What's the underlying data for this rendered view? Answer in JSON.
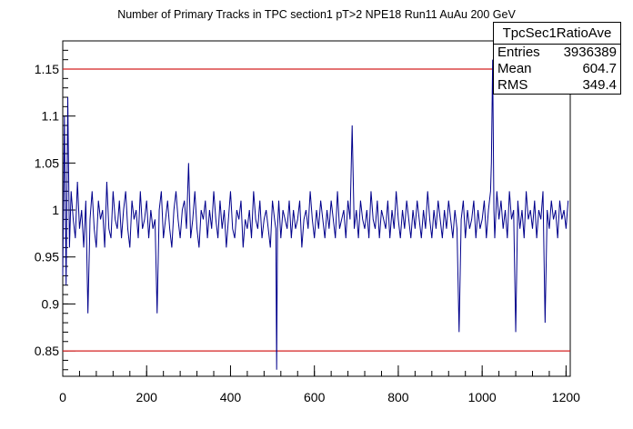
{
  "chart_data": {
    "type": "line",
    "title": "Number of Primary Tracks in TPC section1 pT>2 NPE18 Run11 AuAu 200 GeV",
    "xlabel": "",
    "ylabel": "",
    "xlim": [
      0,
      1210
    ],
    "ylim": [
      0.823,
      1.18
    ],
    "x_ticks": [
      0,
      200,
      400,
      600,
      800,
      1000,
      1200
    ],
    "y_ticks": [
      0.85,
      0.9,
      0.95,
      1,
      1.05,
      1.1,
      1.15
    ],
    "y_tick_labels": [
      "0.85",
      "0.9",
      "0.95",
      "1",
      "1.05",
      "1.1",
      "1.15"
    ],
    "reference_lines": [
      {
        "y": 1.15,
        "color": "#d42020"
      },
      {
        "y": 0.85,
        "color": "#d42020"
      }
    ],
    "series": [
      {
        "color": "#00008b",
        "points": [
          [
            0,
            0.93
          ],
          [
            4,
            1.1
          ],
          [
            8,
            0.92
          ],
          [
            12,
            1.12
          ],
          [
            16,
            0.96
          ],
          [
            20,
            1.02
          ],
          [
            25,
            0.99
          ],
          [
            30,
            0.97
          ],
          [
            35,
            1.03
          ],
          [
            40,
            0.98
          ],
          [
            45,
            1.0
          ],
          [
            50,
            0.96
          ],
          [
            55,
            1.01
          ],
          [
            60,
            0.89
          ],
          [
            65,
            0.99
          ],
          [
            70,
            1.02
          ],
          [
            75,
            0.98
          ],
          [
            80,
            0.96
          ],
          [
            85,
            1.01
          ],
          [
            90,
            0.99
          ],
          [
            95,
            1.0
          ],
          [
            100,
            0.96
          ],
          [
            105,
            1.03
          ],
          [
            110,
            0.98
          ],
          [
            115,
            0.97
          ],
          [
            120,
            1.02
          ],
          [
            125,
            0.99
          ],
          [
            130,
            0.98
          ],
          [
            135,
            1.01
          ],
          [
            140,
            0.97
          ],
          [
            145,
            1.0
          ],
          [
            150,
            1.02
          ],
          [
            155,
            0.98
          ],
          [
            160,
            0.96
          ],
          [
            165,
            1.01
          ],
          [
            170,
            0.99
          ],
          [
            175,
            1.0
          ],
          [
            180,
            0.97
          ],
          [
            185,
            1.02
          ],
          [
            190,
            0.98
          ],
          [
            195,
            0.99
          ],
          [
            200,
            1.01
          ],
          [
            205,
            0.97
          ],
          [
            210,
            1.0
          ],
          [
            215,
            0.98
          ],
          [
            220,
            0.99
          ],
          [
            225,
            0.89
          ],
          [
            230,
            1.0
          ],
          [
            235,
            1.02
          ],
          [
            240,
            0.97
          ],
          [
            245,
            0.99
          ],
          [
            250,
            1.01
          ],
          [
            255,
            0.98
          ],
          [
            260,
            0.96
          ],
          [
            265,
            1.0
          ],
          [
            270,
            1.02
          ],
          [
            275,
            0.99
          ],
          [
            280,
            0.97
          ],
          [
            285,
            1.0
          ],
          [
            290,
            1.01
          ],
          [
            295,
            0.98
          ],
          [
            300,
            1.05
          ],
          [
            305,
            0.97
          ],
          [
            310,
            0.99
          ],
          [
            315,
            1.02
          ],
          [
            320,
            0.98
          ],
          [
            325,
            0.96
          ],
          [
            330,
            1.0
          ],
          [
            335,
            0.99
          ],
          [
            340,
            1.01
          ],
          [
            345,
            0.97
          ],
          [
            350,
            1.0
          ],
          [
            355,
            0.98
          ],
          [
            360,
            1.02
          ],
          [
            365,
            0.99
          ],
          [
            370,
            0.97
          ],
          [
            375,
            1.01
          ],
          [
            380,
            0.98
          ],
          [
            385,
            1.0
          ],
          [
            390,
            0.96
          ],
          [
            395,
            0.99
          ],
          [
            400,
            1.02
          ],
          [
            405,
            0.98
          ],
          [
            410,
            0.97
          ],
          [
            415,
            1.0
          ],
          [
            420,
            0.99
          ],
          [
            425,
            1.01
          ],
          [
            430,
            0.96
          ],
          [
            435,
            0.99
          ],
          [
            440,
            0.98
          ],
          [
            445,
            1.0
          ],
          [
            450,
            0.97
          ],
          [
            455,
            1.02
          ],
          [
            460,
            0.99
          ],
          [
            465,
            0.98
          ],
          [
            470,
            1.01
          ],
          [
            475,
            0.97
          ],
          [
            480,
            0.99
          ],
          [
            485,
            1.0
          ],
          [
            490,
            0.98
          ],
          [
            495,
            0.96
          ],
          [
            500,
            1.01
          ],
          [
            505,
            0.99
          ],
          [
            508,
            0.98
          ],
          [
            510,
            0.83
          ],
          [
            512,
            0.98
          ],
          [
            515,
            1.01
          ],
          [
            520,
            0.97
          ],
          [
            525,
            1.0
          ],
          [
            530,
            0.99
          ],
          [
            535,
            0.98
          ],
          [
            540,
            1.01
          ],
          [
            545,
            0.97
          ],
          [
            550,
            1.0
          ],
          [
            555,
            0.98
          ],
          [
            560,
            0.99
          ],
          [
            565,
            1.01
          ],
          [
            570,
            0.96
          ],
          [
            575,
            0.99
          ],
          [
            580,
            1.0
          ],
          [
            585,
            0.98
          ],
          [
            590,
            1.02
          ],
          [
            595,
            0.99
          ],
          [
            600,
            0.97
          ],
          [
            605,
            1.0
          ],
          [
            610,
            0.98
          ],
          [
            615,
            1.01
          ],
          [
            620,
            0.99
          ],
          [
            625,
            0.97
          ],
          [
            630,
            1.0
          ],
          [
            635,
            0.98
          ],
          [
            640,
            1.01
          ],
          [
            645,
            0.99
          ],
          [
            650,
            0.97
          ],
          [
            655,
            1.02
          ],
          [
            660,
            0.98
          ],
          [
            665,
            0.99
          ],
          [
            670,
            1.0
          ],
          [
            675,
            0.97
          ],
          [
            680,
            1.01
          ],
          [
            685,
            0.99
          ],
          [
            690,
            1.09
          ],
          [
            695,
            0.98
          ],
          [
            700,
            1.0
          ],
          [
            705,
            0.97
          ],
          [
            710,
            1.01
          ],
          [
            715,
            0.99
          ],
          [
            720,
            0.98
          ],
          [
            725,
            1.0
          ],
          [
            730,
            0.97
          ],
          [
            735,
            1.02
          ],
          [
            740,
            0.99
          ],
          [
            745,
            0.98
          ],
          [
            750,
            1.01
          ],
          [
            755,
            0.97
          ],
          [
            760,
            1.0
          ],
          [
            765,
            0.99
          ],
          [
            770,
            0.98
          ],
          [
            775,
            1.01
          ],
          [
            780,
            0.97
          ],
          [
            785,
            1.0
          ],
          [
            790,
            0.98
          ],
          [
            795,
            1.02
          ],
          [
            800,
            0.99
          ],
          [
            805,
            0.97
          ],
          [
            810,
            1.0
          ],
          [
            815,
            0.98
          ],
          [
            820,
            1.01
          ],
          [
            825,
            0.99
          ],
          [
            830,
            0.97
          ],
          [
            835,
            1.0
          ],
          [
            840,
            0.98
          ],
          [
            845,
            1.01
          ],
          [
            850,
            0.99
          ],
          [
            855,
            0.97
          ],
          [
            860,
            1.0
          ],
          [
            865,
            0.98
          ],
          [
            870,
            1.02
          ],
          [
            875,
            0.99
          ],
          [
            880,
            0.97
          ],
          [
            885,
            1.0
          ],
          [
            890,
            0.98
          ],
          [
            895,
            1.01
          ],
          [
            900,
            0.99
          ],
          [
            905,
            0.97
          ],
          [
            910,
            1.0
          ],
          [
            915,
            0.98
          ],
          [
            920,
            1.01
          ],
          [
            925,
            0.99
          ],
          [
            930,
            0.97
          ],
          [
            935,
            1.0
          ],
          [
            940,
            0.98
          ],
          [
            945,
            0.87
          ],
          [
            950,
            0.99
          ],
          [
            955,
            1.01
          ],
          [
            960,
            0.97
          ],
          [
            965,
            1.0
          ],
          [
            970,
            0.98
          ],
          [
            975,
            0.99
          ],
          [
            980,
            1.01
          ],
          [
            985,
            0.97
          ],
          [
            990,
            1.0
          ],
          [
            995,
            0.98
          ],
          [
            1000,
            0.99
          ],
          [
            1005,
            1.01
          ],
          [
            1010,
            0.97
          ],
          [
            1015,
            1.0
          ],
          [
            1020,
            1.02
          ],
          [
            1022,
            1.05
          ],
          [
            1025,
            1.16
          ],
          [
            1028,
            1.0
          ],
          [
            1030,
            0.97
          ],
          [
            1035,
            1.02
          ],
          [
            1040,
            0.99
          ],
          [
            1045,
            1.01
          ],
          [
            1050,
            0.98
          ],
          [
            1055,
            1.0
          ],
          [
            1060,
            0.97
          ],
          [
            1065,
            1.02
          ],
          [
            1070,
            0.99
          ],
          [
            1075,
            1.0
          ],
          [
            1080,
            0.87
          ],
          [
            1085,
            1.01
          ],
          [
            1090,
            0.98
          ],
          [
            1095,
            1.0
          ],
          [
            1100,
            0.97
          ],
          [
            1105,
            1.02
          ],
          [
            1110,
            0.99
          ],
          [
            1115,
            1.0
          ],
          [
            1120,
            0.98
          ],
          [
            1125,
            1.01
          ],
          [
            1130,
            0.97
          ],
          [
            1135,
            1.0
          ],
          [
            1140,
            0.99
          ],
          [
            1145,
            1.02
          ],
          [
            1150,
            0.88
          ],
          [
            1155,
            1.0
          ],
          [
            1160,
            0.98
          ],
          [
            1165,
            1.01
          ],
          [
            1170,
            0.99
          ],
          [
            1175,
            1.0
          ],
          [
            1180,
            0.97
          ],
          [
            1185,
            1.01
          ],
          [
            1190,
            0.99
          ],
          [
            1195,
            1.0
          ],
          [
            1200,
            0.98
          ],
          [
            1205,
            1.01
          ]
        ]
      }
    ],
    "stats_box": {
      "title": "TpcSec1RatioAve",
      "entries_label": "Entries",
      "entries_value": "3936389",
      "mean_label": "Mean",
      "mean_value": "604.7",
      "rms_label": "RMS",
      "rms_value": "349.4"
    },
    "colors": {
      "series": "#00008b",
      "reference": "#d42020",
      "axis": "#000000"
    }
  }
}
